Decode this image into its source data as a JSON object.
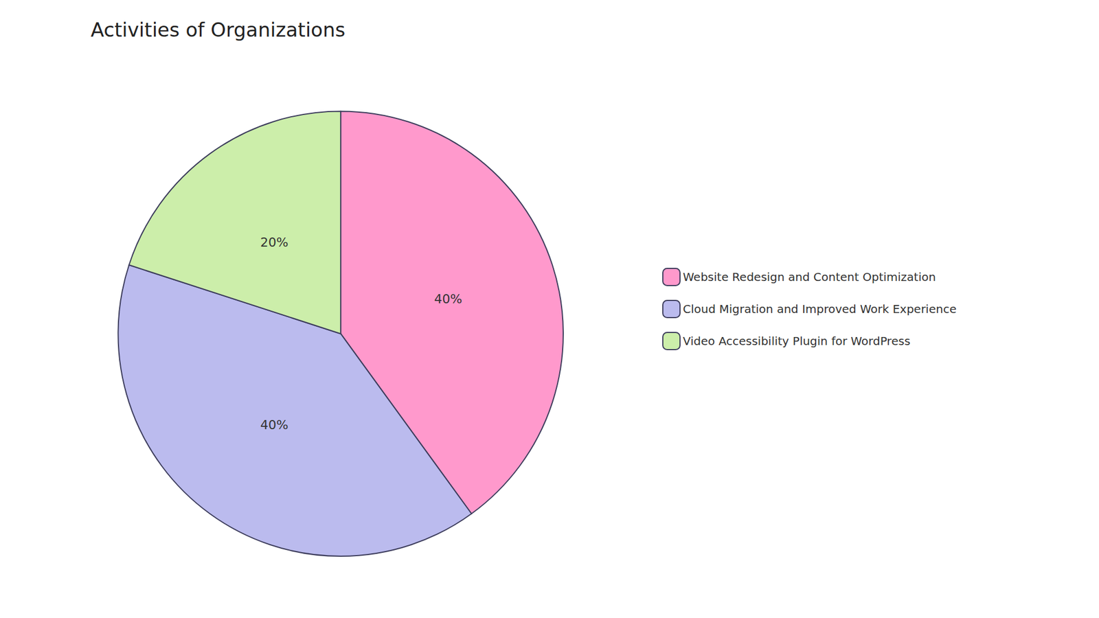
{
  "chart_data": {
    "type": "pie",
    "title": "Activities of Organizations",
    "categories": [
      "Website Redesign and Content Optimization",
      "Cloud Migration and Improved Work Experience",
      "Video Accessibility Plugin for WordPress"
    ],
    "values": [
      40,
      40,
      20
    ],
    "value_labels": [
      "40%",
      "40%",
      "20%"
    ],
    "colors": [
      "#FF99CC",
      "#BBBBEE",
      "#CCEEAA"
    ],
    "data_labels": true,
    "legend": "right"
  }
}
